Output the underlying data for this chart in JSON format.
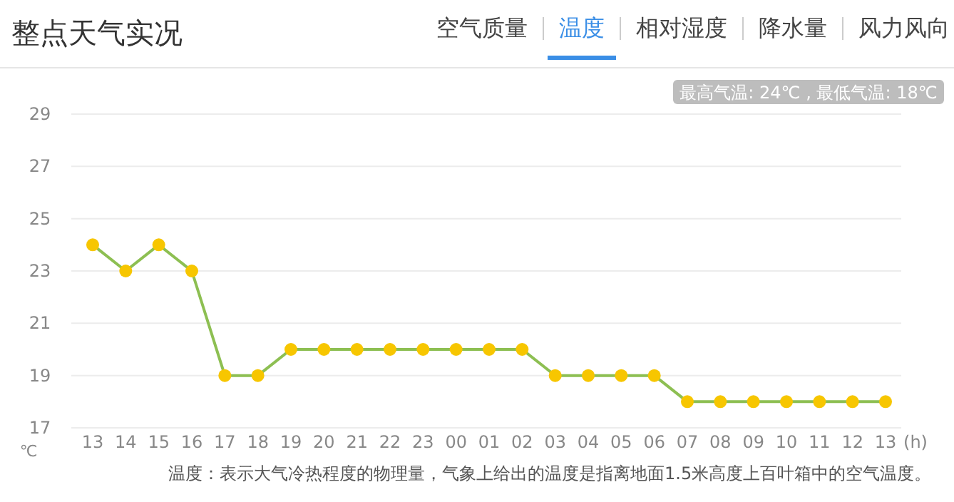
{
  "chart_data": {
    "type": "line",
    "title": "整点天气实况",
    "xlabel": "(h)",
    "ylabel": "℃",
    "categories": [
      "13",
      "14",
      "15",
      "16",
      "17",
      "18",
      "19",
      "20",
      "21",
      "22",
      "23",
      "00",
      "01",
      "02",
      "03",
      "04",
      "05",
      "06",
      "07",
      "08",
      "09",
      "10",
      "11",
      "12",
      "13"
    ],
    "series": [
      {
        "color": "#8dbf52",
        "colors": [
          "#f7c600",
          "#f7c600",
          "#f7c600",
          "#f7c600",
          "#f7c600",
          "#f7c600",
          "#f7c600",
          "#f7c600",
          "#f7c600",
          "#f7c600",
          "#f7c600",
          "#f7c600",
          "#f7c600",
          "#f7c600",
          "#f7c600",
          "#f7c600",
          "#f7c600",
          "#f7c600",
          "#f7c600",
          "#f7c600",
          "#f7c600",
          "#f7c600",
          "#f7c600",
          "#f7c600",
          "#f7c600"
        ],
        "values": [
          24,
          23,
          24,
          23,
          19,
          19,
          20,
          20,
          20,
          20,
          20,
          20,
          20,
          20,
          19,
          19,
          19,
          19,
          18,
          18,
          18,
          18,
          18,
          18,
          18
        ]
      }
    ],
    "ylim": [
      17,
      29
    ],
    "yticks": [
      17,
      19,
      21,
      23,
      25,
      27,
      29
    ],
    "grid": "y",
    "marker": "circle",
    "line_style": "solid",
    "annotations": [
      "空气质量",
      "温度",
      "相对湿度",
      "降水量",
      "风力风向",
      "最高气温: 24℃ , 最低气温: 18℃",
      "温度：表示大气冷热程度的物理量，气象上给出的温度是指离地面1.5米高度上百叶箱中的空气温度。"
    ]
  }
}
